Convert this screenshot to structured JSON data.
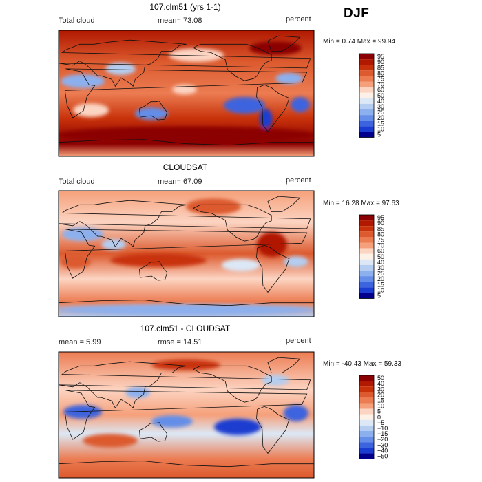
{
  "season": "DJF",
  "panels": [
    {
      "title": "107.clm51 (yrs 1-1)",
      "left_label": "Total cloud",
      "center_label": "mean=  73.08",
      "right_label": "percent",
      "minmax": "Min =   0.74 Max =  99.94",
      "field": "Total cloud",
      "mean": 73.08,
      "min": 0.74,
      "max": 99.94,
      "colorbar_levels": [
        "95",
        "90",
        "85",
        "80",
        "75",
        "70",
        "60",
        "50",
        "40",
        "30",
        "25",
        "20",
        "15",
        "10",
        "5"
      ]
    },
    {
      "title": "CLOUDSAT",
      "left_label": "Total cloud",
      "center_label": "mean=  67.09",
      "right_label": "percent",
      "minmax": "Min =  16.28 Max =  97.63",
      "field": "Total cloud",
      "mean": 67.09,
      "min": 16.28,
      "max": 97.63,
      "colorbar_levels": [
        "95",
        "90",
        "85",
        "80",
        "75",
        "70",
        "60",
        "50",
        "40",
        "30",
        "25",
        "20",
        "15",
        "10",
        "5"
      ]
    },
    {
      "title": "107.clm51 - CLOUDSAT",
      "left_label": "mean =   5.99",
      "center_label": "rmse =  14.51",
      "right_label": "percent",
      "minmax": "Min = -40.43 Max =  59.33",
      "mean": 5.99,
      "rmse": 14.51,
      "min": -40.43,
      "max": 59.33,
      "colorbar_levels": [
        "50",
        "40",
        "30",
        "20",
        "15",
        "10",
        "5",
        "0",
        "−5",
        "−10",
        "−15",
        "−20",
        "−30",
        "−40",
        "−50"
      ]
    }
  ],
  "colors": {
    "abs_palette": [
      "#8b0000",
      "#b01800",
      "#c8320a",
      "#dc5a2e",
      "#ec7c52",
      "#f5a07a",
      "#fcd4c2",
      "#fdf0e6",
      "#dce8f6",
      "#b4cdf0",
      "#8cb0ee",
      "#648ee8",
      "#3c64de",
      "#1a3cd0",
      "#00008c"
    ],
    "diff_palette": [
      "#8b0000",
      "#b01800",
      "#c8320a",
      "#dc5a2e",
      "#ec7c52",
      "#f5a07a",
      "#fcd4c2",
      "#fdf0e6",
      "#dce8f6",
      "#b4cdf0",
      "#8cb0ee",
      "#648ee8",
      "#3c64de",
      "#1a3cd0",
      "#00008c"
    ]
  }
}
